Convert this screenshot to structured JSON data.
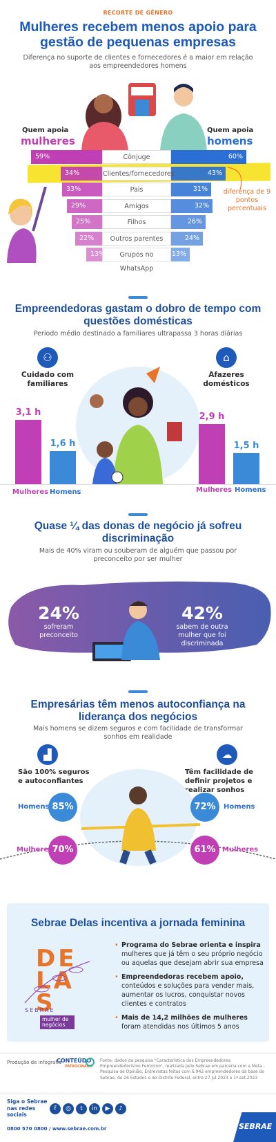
{
  "header": {
    "tag": "RECORTE DE GÊNERO",
    "title": "Mulheres recebem menos apoio para gestão de pequenas empresas",
    "subtitle": "Diferença no suporte de clientes e fornecedores é a maior em relação aos empreendedores homens"
  },
  "support": {
    "women_label_1": "Quem apoia",
    "women_label_2": "mulheres",
    "men_label_1": "Quem apoia",
    "men_label_2": "homens",
    "rows": [
      {
        "label": "Cônjuge",
        "women": "59%",
        "men": "60%"
      },
      {
        "label": "Clientes/fornecedores",
        "women": "34%",
        "men": "43%"
      },
      {
        "label": "Pais",
        "women": "33%",
        "men": "31%"
      },
      {
        "label": "Amigos",
        "women": "29%",
        "men": "32%"
      },
      {
        "label": "Filhos",
        "women": "25%",
        "men": "26%"
      },
      {
        "label": "Outros parentes",
        "women": "22%",
        "men": "24%"
      },
      {
        "label": "Grupos no WhatsApp",
        "women": "13%",
        "men": "13%"
      }
    ],
    "note": "diferença de 9 pontos percentuais",
    "colors": {
      "women": "#c13fb4",
      "men": "#2b6fd4",
      "highlight": "#f7e430"
    }
  },
  "time": {
    "title": "Empreendedoras gastam o dobro de tempo com questões domésticas",
    "subtitle": "Período médio destinado a familiares ultrapassa 3 horas diárias",
    "care_title": "Cuidado com familiares",
    "chores_title": "Afazeres domésticos",
    "care_women": "3,1 h",
    "care_men": "1,6 h",
    "chores_women": "2,9 h",
    "chores_men": "1,5 h",
    "women": "Mulheres",
    "men": "Homens",
    "women2": "Mulheres",
    "men2": "Homens"
  },
  "discrimination": {
    "title": "Quase ¼ das donas de negócio já sofreu discriminação",
    "subtitle": "Mais de 40% viram ou souberam de alguém que passou por preconceito por ser mulher",
    "left_value": "24%",
    "left_text": "sofreram preconceito",
    "right_value": "42%",
    "right_text": "sabem de outra mulher que foi discriminada"
  },
  "confidence": {
    "title": "Empresárias têm menos autoconfiança na liderança dos negócios",
    "subtitle": "Mais homens se dizem seguros e com facilidade de transformar sonhos em realidade",
    "left_title": "São 100% seguros e autoconfiantes",
    "right_title": "Têm facilidade de definir projetos e realizar sonhos",
    "men_label_l": "Homens",
    "women_label_l": "Mulheres",
    "men_label_r": "Homens",
    "women_label_r": "Mulheres",
    "men_left": "85%",
    "women_left": "70%",
    "men_right": "72%",
    "women_right": "61%"
  },
  "delas": {
    "title": "Sebrae Delas incentiva a jornada feminina",
    "logo_text": "DELAS",
    "logo_brand": "SEBRAE",
    "logo_tag": "mulher de negócios",
    "bullets": [
      {
        "strong": "Programa do Sebrae orienta e inspira",
        "rest": " mulheres que já têm o seu próprio negócio ou aquelas que desejam abrir sua empresa"
      },
      {
        "strong": "Empreendedoras recebem apoio,",
        "rest": " conteúdos e soluções para vender mais, aumentar os lucros, conquistar novos clientes e contratos"
      },
      {
        "strong": "Mais de 14,2 milhões de mulheres",
        "rest": " foram atendidas nos últimos 5 anos"
      }
    ]
  },
  "footer": {
    "production": "Produção de infografia",
    "brand": "CONTEÚDO",
    "brand_sub": "PATROCINADO",
    "source": "Fonte: dados da pesquisa \"Característica dos Empreendedores: Empreendedorismo Feminino\", realizada pelo Sebrae em parceria com a Meta - Pesquisa de Opinião. Entrevistas feitas com 6.942 empreendedores da base do Sebrae, de 26 Estados e do Distrito Federal, entre 27.jul.2023 e 1º.set.2023",
    "follow": "Siga o Sebrae nas redes sociais",
    "contact": "0800 570 0800 / www.sebrae.com.br",
    "logo": "SEBRAE",
    "social": [
      "f",
      "◎",
      "t",
      "in",
      "▶",
      "♪"
    ]
  }
}
